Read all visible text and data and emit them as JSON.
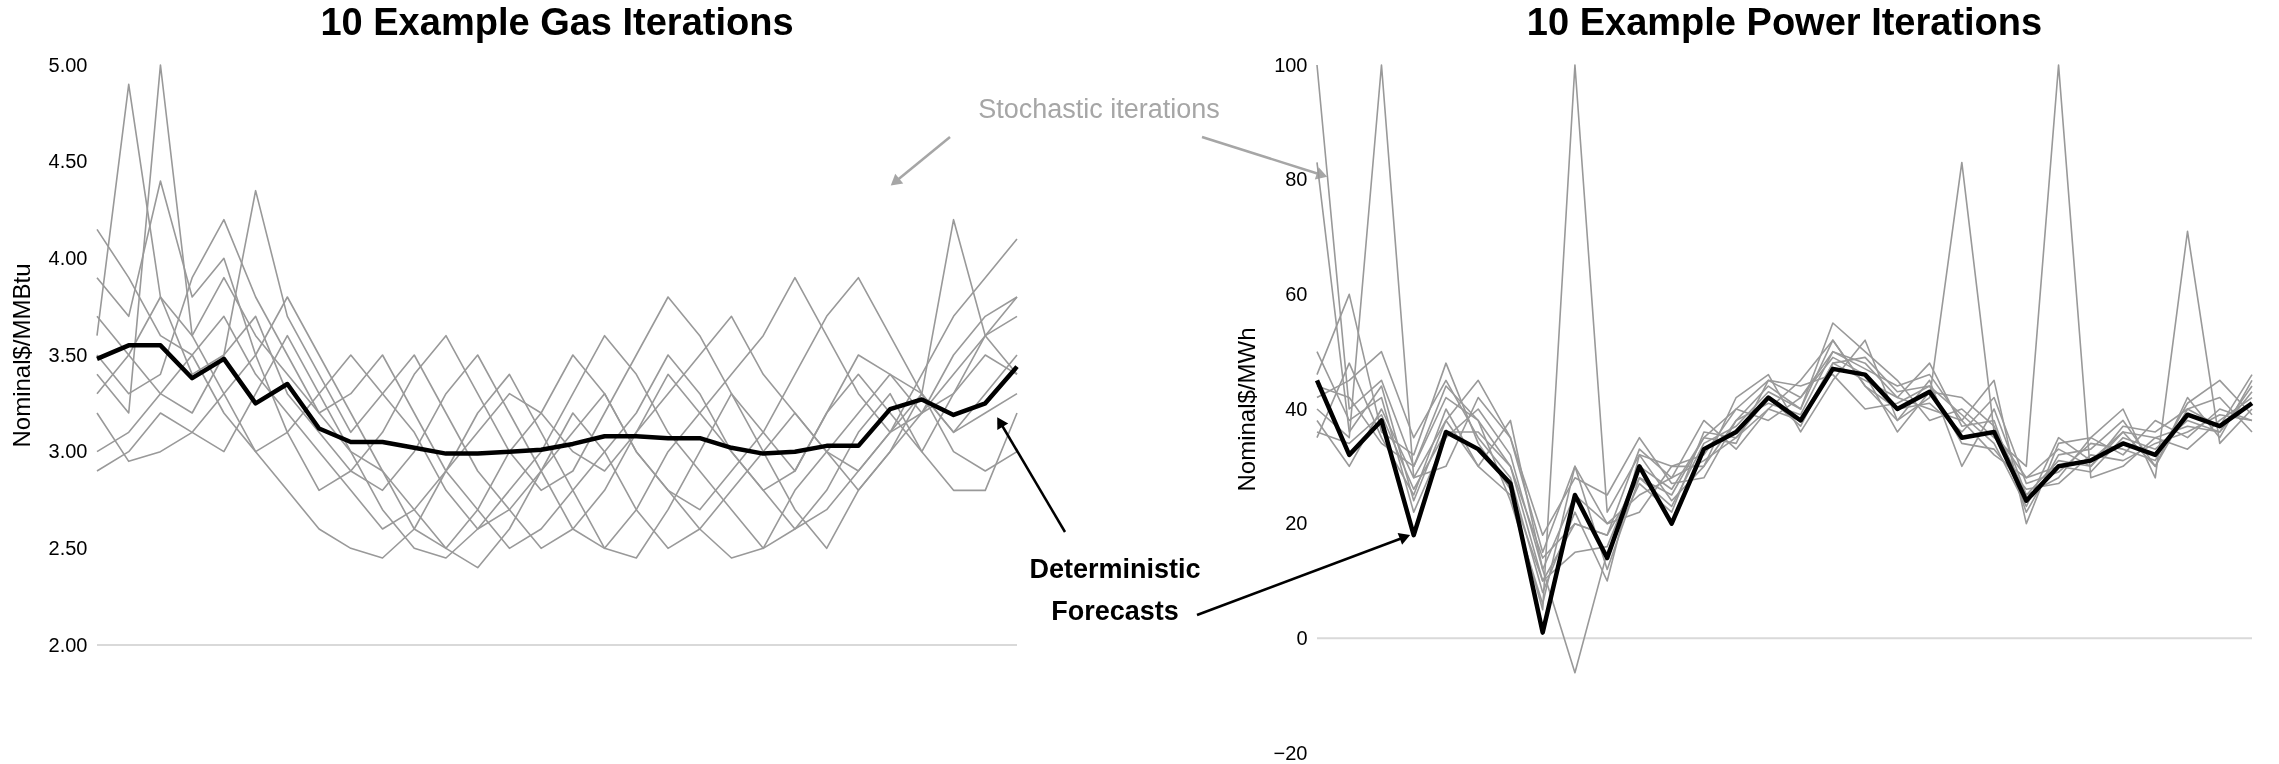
{
  "chart_data": [
    {
      "type": "line",
      "title": "10 Example Gas Iterations",
      "ylabel": "Nominal$/MMBtu",
      "categories": [
        null,
        null,
        null,
        null,
        null,
        null,
        null,
        null,
        null,
        null,
        null,
        null,
        null,
        null,
        null,
        null,
        null,
        null,
        null,
        null,
        null,
        null,
        null,
        null,
        null,
        null,
        null,
        null,
        null,
        null
      ],
      "ylim": [
        2,
        5
      ],
      "yticks": [
        {
          "value": 2,
          "label": "2.00"
        },
        {
          "value": 2.5,
          "label": "2.50"
        },
        {
          "value": 3,
          "label": "3.00"
        },
        {
          "value": 3.5,
          "label": "3.50"
        },
        {
          "value": 4,
          "label": "4.00"
        },
        {
          "value": 4.5,
          "label": "4.50"
        },
        {
          "value": 5,
          "label": "5.00"
        }
      ],
      "tick_labels": "y",
      "grid": false,
      "ref_lines": [
        {
          "axis": "y",
          "value": 2,
          "color": "#d9d9d9"
        }
      ],
      "annotations": [
        "Stochastic iterations",
        "Deterministic Forecasts"
      ],
      "series": [
        {
          "color": "#999999",
          "values": [
            4.15,
            3.9,
            3.6,
            3.5,
            3.7,
            3.4,
            3.2,
            3.0,
            2.8,
            2.6,
            2.7,
            2.9,
            3.1,
            3.3,
            3.2,
            3.0,
            2.9,
            3.1,
            3.4,
            3.2,
            3.0,
            2.8,
            2.9,
            3.2,
            3.5,
            3.4,
            3.2,
            3.3,
            3.6,
            3.8
          ]
        },
        {
          "color": "#999999",
          "values": [
            3.3,
            3.5,
            3.8,
            3.6,
            3.9,
            3.6,
            3.4,
            3.2,
            3.3,
            3.5,
            3.2,
            2.9,
            2.7,
            2.5,
            2.6,
            2.8,
            3.0,
            3.2,
            3.5,
            3.3,
            3.0,
            2.8,
            2.6,
            2.7,
            2.9,
            3.1,
            3.3,
            3.1,
            3.3,
            3.5
          ]
        },
        {
          "color": "#999999",
          "values": [
            2.9,
            3.0,
            3.2,
            3.1,
            3.0,
            3.3,
            3.6,
            3.3,
            3.0,
            2.7,
            2.5,
            2.45,
            2.6,
            2.8,
            3.0,
            3.3,
            3.6,
            3.4,
            3.1,
            2.9,
            2.7,
            2.5,
            2.6,
            2.8,
            3.1,
            3.3,
            3.0,
            2.8,
            2.8,
            3.2
          ]
        },
        {
          "color": "#999999",
          "values": [
            3.6,
            4.9,
            3.8,
            3.4,
            3.5,
            3.7,
            3.3,
            3.1,
            2.9,
            2.8,
            3.0,
            3.3,
            3.5,
            3.2,
            2.9,
            2.6,
            2.5,
            2.7,
            3.0,
            3.2,
            3.4,
            3.6,
            3.9,
            3.6,
            3.3,
            3.1,
            3.4,
            3.7,
            3.9,
            4.1
          ]
        },
        {
          "color": "#999999",
          "values": [
            3.4,
            3.2,
            5.0,
            3.6,
            3.3,
            3.0,
            2.8,
            2.6,
            2.5,
            2.45,
            2.6,
            2.9,
            3.2,
            3.4,
            3.1,
            2.8,
            2.5,
            2.45,
            2.7,
            3.0,
            3.3,
            3.1,
            2.9,
            3.2,
            3.4,
            3.2,
            3.0,
            3.3,
            3.5,
            3.4
          ]
        },
        {
          "color": "#999999",
          "values": [
            3.9,
            3.7,
            4.4,
            3.8,
            4.0,
            3.5,
            3.1,
            2.8,
            2.9,
            3.1,
            3.4,
            3.6,
            3.3,
            3.0,
            2.8,
            2.9,
            3.2,
            3.5,
            3.8,
            3.6,
            3.3,
            3.0,
            2.7,
            2.5,
            2.8,
            3.0,
            3.2,
            3.5,
            3.7,
            3.8
          ]
        },
        {
          "color": "#999999",
          "values": [
            3.5,
            3.3,
            3.4,
            3.9,
            4.2,
            3.8,
            3.5,
            3.2,
            3.0,
            2.9,
            2.7,
            2.5,
            2.4,
            2.6,
            2.9,
            3.1,
            3.3,
            3.0,
            2.8,
            2.6,
            2.45,
            2.5,
            2.8,
            3.0,
            3.2,
            3.4,
            3.3,
            3.1,
            3.2,
            3.3
          ]
        },
        {
          "color": "#999999",
          "values": [
            3.2,
            2.95,
            3.0,
            3.1,
            3.3,
            3.5,
            3.8,
            3.5,
            3.2,
            2.9,
            2.6,
            2.5,
            2.7,
            3.0,
            3.2,
            3.5,
            3.3,
            3.0,
            2.8,
            2.7,
            2.9,
            3.1,
            3.4,
            3.7,
            3.9,
            3.6,
            3.3,
            3.0,
            2.9,
            3.0
          ]
        },
        {
          "color": "#999999",
          "values": [
            3.7,
            3.5,
            3.3,
            3.2,
            3.5,
            4.35,
            3.7,
            3.4,
            3.1,
            3.3,
            3.5,
            3.2,
            2.9,
            2.7,
            2.5,
            2.6,
            2.8,
            3.1,
            3.3,
            3.5,
            3.7,
            3.4,
            3.2,
            3.0,
            2.8,
            3.0,
            3.3,
            4.2,
            3.6,
            3.4
          ]
        },
        {
          "color": "#999999",
          "values": [
            3.0,
            3.1,
            3.3,
            3.5,
            3.2,
            3.0,
            3.1,
            3.3,
            3.5,
            3.3,
            3.1,
            2.8,
            2.6,
            2.7,
            2.9,
            3.2,
            3.0,
            2.7,
            2.5,
            2.6,
            2.8,
            3.0,
            3.2,
            3.0,
            2.9,
            3.1,
            3.2,
            3.4,
            3.6,
            3.7
          ]
        },
        {
          "color": "#000000",
          "values": [
            3.48,
            3.55,
            3.55,
            3.38,
            3.48,
            3.25,
            3.35,
            3.12,
            3.05,
            3.05,
            3.02,
            2.99,
            2.99,
            3.0,
            3.01,
            3.04,
            3.08,
            3.08,
            3.07,
            3.07,
            3.02,
            2.99,
            3.0,
            3.03,
            3.03,
            3.22,
            3.27,
            3.19,
            3.25,
            3.44
          ]
        }
      ]
    },
    {
      "type": "line",
      "title": "10 Example Power Iterations",
      "ylabel": "Nominal$/MWh",
      "categories": [
        null,
        null,
        null,
        null,
        null,
        null,
        null,
        null,
        null,
        null,
        null,
        null,
        null,
        null,
        null,
        null,
        null,
        null,
        null,
        null,
        null,
        null,
        null,
        null,
        null,
        null,
        null,
        null,
        null,
        null
      ],
      "ylim": [
        -20,
        100
      ],
      "yticks": [
        -20,
        0,
        20,
        40,
        60,
        80,
        100
      ],
      "tick_labels": "y",
      "grid": false,
      "ref_lines": [
        {
          "axis": "y",
          "value": 0,
          "color": "#d9d9d9"
        }
      ],
      "series": [
        {
          "color": "#999999",
          "values": [
            100,
            40,
            45,
            30,
            42,
            38,
            30,
            10,
            20,
            18,
            28,
            25,
            35,
            40,
            45,
            42,
            50,
            48,
            42,
            40,
            38,
            32,
            28,
            33,
            30,
            36,
            30,
            42,
            35,
            45
          ]
        },
        {
          "color": "#999999",
          "values": [
            40,
            35,
            100,
            28,
            38,
            45,
            35,
            15,
            30,
            20,
            25,
            28,
            38,
            33,
            40,
            45,
            52,
            44,
            38,
            45,
            30,
            40,
            25,
            28,
            35,
            32,
            38,
            35,
            40,
            38
          ]
        },
        {
          "color": "#999999",
          "values": [
            35,
            48,
            35,
            25,
            40,
            30,
            25,
            5,
            100,
            22,
            32,
            30,
            30,
            38,
            44,
            40,
            55,
            50,
            45,
            38,
            40,
            35,
            30,
            100,
            28,
            30,
            35,
            33,
            38,
            42
          ]
        },
        {
          "color": "#999999",
          "values": [
            50,
            38,
            42,
            22,
            35,
            40,
            32,
            12,
            -6,
            15,
            27,
            22,
            36,
            35,
            40,
            38,
            48,
            45,
            42,
            48,
            37,
            38,
            22,
            32,
            33,
            38,
            30,
            40,
            42,
            36
          ]
        },
        {
          "color": "#999999",
          "values": [
            42,
            45,
            50,
            35,
            45,
            35,
            28,
            8,
            22,
            10,
            32,
            24,
            30,
            42,
            46,
            36,
            45,
            52,
            38,
            42,
            83,
            36,
            28,
            30,
            29,
            35,
            33,
            38,
            36,
            44
          ]
        },
        {
          "color": "#999999",
          "values": [
            38,
            30,
            40,
            28,
            30,
            42,
            35,
            18,
            28,
            25,
            35,
            27,
            28,
            38,
            41,
            39,
            50,
            47,
            44,
            46,
            38,
            45,
            20,
            34,
            35,
            40,
            28,
            71,
            34,
            40
          ]
        },
        {
          "color": "#999999",
          "values": [
            46,
            60,
            36,
            32,
            48,
            34,
            26,
            10,
            15,
            16,
            30,
            26,
            35,
            34,
            45,
            44,
            46,
            40,
            41,
            44,
            34,
            33,
            26,
            27,
            32,
            31,
            34,
            36,
            39,
            38
          ]
        },
        {
          "color": "#999999",
          "values": [
            83,
            36,
            44,
            24,
            38,
            30,
            38,
            12,
            25,
            20,
            22,
            30,
            32,
            40,
            38,
            42,
            49,
            46,
            36,
            43,
            42,
            37,
            25,
            31,
            30,
            37,
            36,
            40,
            37,
            46
          ]
        },
        {
          "color": "#999999",
          "values": [
            44,
            42,
            34,
            30,
            44,
            38,
            24,
            6,
            30,
            12,
            28,
            23,
            34,
            37,
            43,
            40,
            52,
            44,
            40,
            41,
            36,
            42,
            27,
            29,
            34,
            33,
            31,
            41,
            45,
            39
          ]
        },
        {
          "color": "#999999",
          "values": [
            36,
            34,
            39,
            26,
            36,
            36,
            30,
            14,
            20,
            18,
            33,
            28,
            31,
            35,
            42,
            37,
            48,
            49,
            43,
            44,
            39,
            34,
            23,
            35,
            31,
            36,
            35,
            37,
            36,
            43
          ]
        },
        {
          "color": "#000000",
          "values": [
            45,
            32,
            38,
            18,
            36,
            33,
            27,
            1,
            25,
            14,
            30,
            20,
            33,
            36,
            42,
            38,
            47,
            46,
            40,
            43,
            35,
            36,
            24,
            30,
            31,
            34,
            32,
            39,
            37,
            41
          ]
        }
      ]
    }
  ]
}
